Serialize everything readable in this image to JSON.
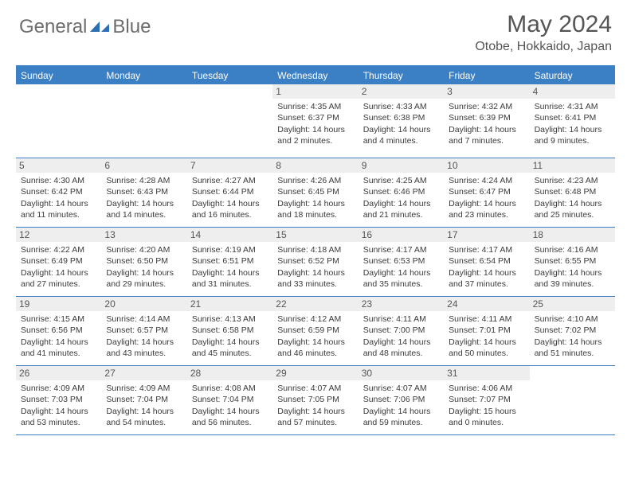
{
  "logo": {
    "text1": "General",
    "text2": "Blue",
    "accent": "#3b7fc4"
  },
  "title": "May 2024",
  "location": "Otobe, Hokkaido, Japan",
  "colors": {
    "header_bg": "#3b7fc4",
    "daynum_bg": "#eeeeee",
    "text": "#3a3a3a",
    "title_text": "#555555"
  },
  "weekdays": [
    "Sunday",
    "Monday",
    "Tuesday",
    "Wednesday",
    "Thursday",
    "Friday",
    "Saturday"
  ],
  "weeks": [
    [
      null,
      null,
      null,
      {
        "n": "1",
        "sr": "4:35 AM",
        "ss": "6:37 PM",
        "dl": "14 hours and 2 minutes."
      },
      {
        "n": "2",
        "sr": "4:33 AM",
        "ss": "6:38 PM",
        "dl": "14 hours and 4 minutes."
      },
      {
        "n": "3",
        "sr": "4:32 AM",
        "ss": "6:39 PM",
        "dl": "14 hours and 7 minutes."
      },
      {
        "n": "4",
        "sr": "4:31 AM",
        "ss": "6:41 PM",
        "dl": "14 hours and 9 minutes."
      }
    ],
    [
      {
        "n": "5",
        "sr": "4:30 AM",
        "ss": "6:42 PM",
        "dl": "14 hours and 11 minutes."
      },
      {
        "n": "6",
        "sr": "4:28 AM",
        "ss": "6:43 PM",
        "dl": "14 hours and 14 minutes."
      },
      {
        "n": "7",
        "sr": "4:27 AM",
        "ss": "6:44 PM",
        "dl": "14 hours and 16 minutes."
      },
      {
        "n": "8",
        "sr": "4:26 AM",
        "ss": "6:45 PM",
        "dl": "14 hours and 18 minutes."
      },
      {
        "n": "9",
        "sr": "4:25 AM",
        "ss": "6:46 PM",
        "dl": "14 hours and 21 minutes."
      },
      {
        "n": "10",
        "sr": "4:24 AM",
        "ss": "6:47 PM",
        "dl": "14 hours and 23 minutes."
      },
      {
        "n": "11",
        "sr": "4:23 AM",
        "ss": "6:48 PM",
        "dl": "14 hours and 25 minutes."
      }
    ],
    [
      {
        "n": "12",
        "sr": "4:22 AM",
        "ss": "6:49 PM",
        "dl": "14 hours and 27 minutes."
      },
      {
        "n": "13",
        "sr": "4:20 AM",
        "ss": "6:50 PM",
        "dl": "14 hours and 29 minutes."
      },
      {
        "n": "14",
        "sr": "4:19 AM",
        "ss": "6:51 PM",
        "dl": "14 hours and 31 minutes."
      },
      {
        "n": "15",
        "sr": "4:18 AM",
        "ss": "6:52 PM",
        "dl": "14 hours and 33 minutes."
      },
      {
        "n": "16",
        "sr": "4:17 AM",
        "ss": "6:53 PM",
        "dl": "14 hours and 35 minutes."
      },
      {
        "n": "17",
        "sr": "4:17 AM",
        "ss": "6:54 PM",
        "dl": "14 hours and 37 minutes."
      },
      {
        "n": "18",
        "sr": "4:16 AM",
        "ss": "6:55 PM",
        "dl": "14 hours and 39 minutes."
      }
    ],
    [
      {
        "n": "19",
        "sr": "4:15 AM",
        "ss": "6:56 PM",
        "dl": "14 hours and 41 minutes."
      },
      {
        "n": "20",
        "sr": "4:14 AM",
        "ss": "6:57 PM",
        "dl": "14 hours and 43 minutes."
      },
      {
        "n": "21",
        "sr": "4:13 AM",
        "ss": "6:58 PM",
        "dl": "14 hours and 45 minutes."
      },
      {
        "n": "22",
        "sr": "4:12 AM",
        "ss": "6:59 PM",
        "dl": "14 hours and 46 minutes."
      },
      {
        "n": "23",
        "sr": "4:11 AM",
        "ss": "7:00 PM",
        "dl": "14 hours and 48 minutes."
      },
      {
        "n": "24",
        "sr": "4:11 AM",
        "ss": "7:01 PM",
        "dl": "14 hours and 50 minutes."
      },
      {
        "n": "25",
        "sr": "4:10 AM",
        "ss": "7:02 PM",
        "dl": "14 hours and 51 minutes."
      }
    ],
    [
      {
        "n": "26",
        "sr": "4:09 AM",
        "ss": "7:03 PM",
        "dl": "14 hours and 53 minutes."
      },
      {
        "n": "27",
        "sr": "4:09 AM",
        "ss": "7:04 PM",
        "dl": "14 hours and 54 minutes."
      },
      {
        "n": "28",
        "sr": "4:08 AM",
        "ss": "7:04 PM",
        "dl": "14 hours and 56 minutes."
      },
      {
        "n": "29",
        "sr": "4:07 AM",
        "ss": "7:05 PM",
        "dl": "14 hours and 57 minutes."
      },
      {
        "n": "30",
        "sr": "4:07 AM",
        "ss": "7:06 PM",
        "dl": "14 hours and 59 minutes."
      },
      {
        "n": "31",
        "sr": "4:06 AM",
        "ss": "7:07 PM",
        "dl": "15 hours and 0 minutes."
      },
      null
    ]
  ],
  "labels": {
    "sunrise": "Sunrise:",
    "sunset": "Sunset:",
    "daylight": "Daylight:"
  }
}
